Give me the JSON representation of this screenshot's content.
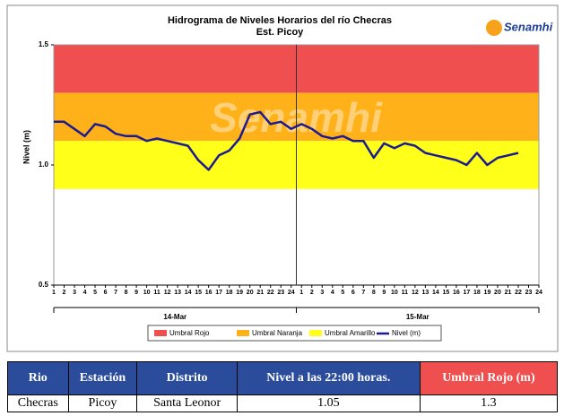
{
  "chart_data": {
    "type": "line",
    "title": "Hidrograma de Niveles Horarios del río Checras",
    "subtitle": "Est. Picoy",
    "logo": "Senamhi",
    "ylabel": "Nivel (m)",
    "ylim": [
      0.5,
      1.5
    ],
    "yticks": [
      0.5,
      {
        "value": 1.0,
        "label": "1.0"
      },
      1.5
    ],
    "groups": [
      "14-Mar",
      "15-Mar"
    ],
    "categories": [
      "1",
      "2",
      "3",
      "4",
      "5",
      "6",
      "7",
      "8",
      "9",
      "10",
      "11",
      "12",
      "13",
      "14",
      "15",
      "16",
      "17",
      "18",
      "19",
      "20",
      "21",
      "22",
      "23",
      "24",
      "1",
      "2",
      "3",
      "4",
      "5",
      "6",
      "7",
      "8",
      "9",
      "10",
      "11",
      "12",
      "13",
      "14",
      "15",
      "16",
      "17",
      "18",
      "19",
      "20",
      "21",
      "22",
      "23",
      "24"
    ],
    "thresholds": [
      {
        "name": "Umbral Rojo",
        "color": "#f04f4f",
        "value": 1.3
      },
      {
        "name": "Umbral Naranja",
        "color": "#ffb11a",
        "value": 1.1
      },
      {
        "name": "Umbral Amarillo",
        "color": "#ffff1a",
        "value": 0.9
      }
    ],
    "series": [
      {
        "name": "Nivel (m)",
        "color": "#1c1c8f",
        "values": [
          1.18,
          1.18,
          1.15,
          1.12,
          1.17,
          1.16,
          1.13,
          1.12,
          1.12,
          1.1,
          1.11,
          1.1,
          1.09,
          1.08,
          1.02,
          0.98,
          1.04,
          1.06,
          1.11,
          1.21,
          1.22,
          1.17,
          1.18,
          1.15,
          1.17,
          1.15,
          1.12,
          1.11,
          1.12,
          1.1,
          1.1,
          1.03,
          1.09,
          1.07,
          1.09,
          1.08,
          1.05,
          1.04,
          1.03,
          1.02,
          1.0,
          1.05,
          1.0,
          1.03,
          1.04,
          1.05,
          null,
          null
        ]
      }
    ]
  },
  "table": {
    "headers": [
      "Rio",
      "Estación",
      "Distrito",
      "Nivel a las 22:00 horas.",
      "Umbral Rojo (m)"
    ],
    "rows": [
      [
        "Checras",
        "Picoy",
        "Santa Leonor",
        "1.05",
        "1.3"
      ]
    ]
  }
}
